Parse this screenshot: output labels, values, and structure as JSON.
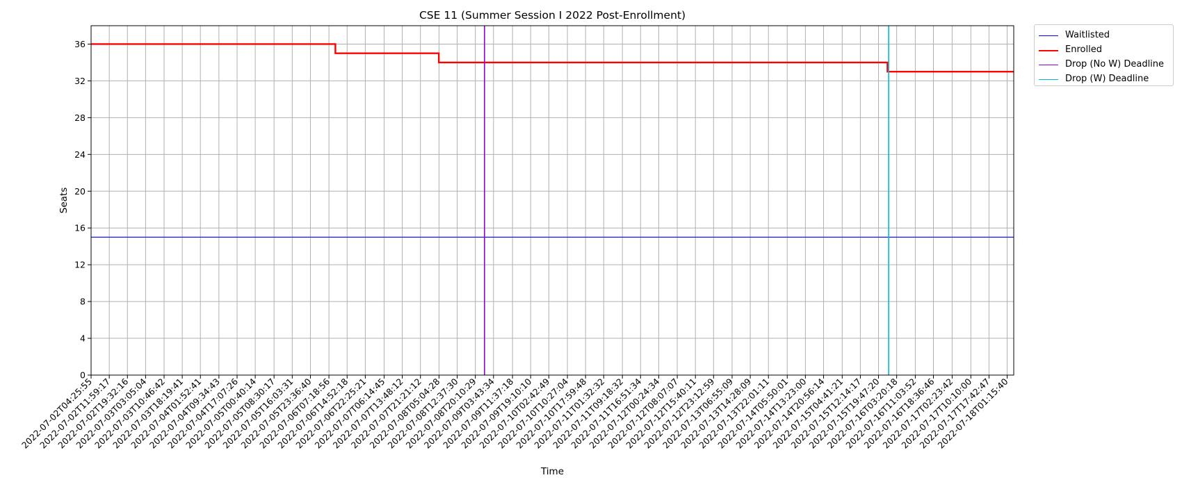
{
  "chart_data": {
    "type": "line",
    "title": "CSE 11 (Summer Session I 2022 Post-Enrollment)",
    "xlabel": "Time",
    "ylabel": "Seats",
    "ylim": [
      0,
      38
    ],
    "y_ticks": [
      0,
      4,
      8,
      12,
      16,
      20,
      24,
      28,
      32,
      36
    ],
    "x_ticks": [
      "2022-07-02T04:25:55",
      "2022-07-02T11:59:17",
      "2022-07-02T19:32:16",
      "2022-07-03T03:05:04",
      "2022-07-03T10:46:42",
      "2022-07-03T18:19:41",
      "2022-07-04T01:52:41",
      "2022-07-04T09:34:43",
      "2022-07-04T17:07:26",
      "2022-07-05T00:40:14",
      "2022-07-05T08:30:17",
      "2022-07-05T16:03:31",
      "2022-07-05T23:36:40",
      "2022-07-06T07:18:56",
      "2022-07-06T14:52:18",
      "2022-07-06T22:25:21",
      "2022-07-07T06:14:45",
      "2022-07-07T13:48:12",
      "2022-07-07T21:21:12",
      "2022-07-08T05:04:28",
      "2022-07-08T12:37:30",
      "2022-07-08T20:10:29",
      "2022-07-09T03:43:34",
      "2022-07-09T11:37:18",
      "2022-07-09T19:10:10",
      "2022-07-10T02:42:49",
      "2022-07-10T10:27:04",
      "2022-07-10T17:59:48",
      "2022-07-11T01:32:32",
      "2022-07-11T09:18:32",
      "2022-07-11T16:51:34",
      "2022-07-12T00:24:34",
      "2022-07-12T08:07:07",
      "2022-07-12T15:40:11",
      "2022-07-12T23:12:59",
      "2022-07-13T06:55:09",
      "2022-07-13T14:28:09",
      "2022-07-13T22:01:11",
      "2022-07-14T05:50:01",
      "2022-07-14T13:23:00",
      "2022-07-14T20:56:14",
      "2022-07-15T04:41:21",
      "2022-07-15T12:14:17",
      "2022-07-15T19:47:20",
      "2022-07-16T03:20:18",
      "2022-07-16T11:03:52",
      "2022-07-16T18:36:46",
      "2022-07-17T02:23:42",
      "2022-07-17T10:10:00",
      "2022-07-17T17:42:47",
      "2022-07-18T01:15:40"
    ],
    "x_start": "2022-07-02T04:25:55",
    "x_end": "2022-07-18T04:00:00",
    "series": [
      {
        "name": "Waitlisted",
        "color": "#0000ff",
        "points": [
          {
            "x": "2022-07-02T04:25:55",
            "y": 15
          },
          {
            "x": "2022-07-18T04:00:00",
            "y": 15
          }
        ]
      },
      {
        "name": "Enrolled",
        "color": "#ff0000",
        "step": true,
        "points": [
          {
            "x": "2022-07-02T04:25:55",
            "y": 36
          },
          {
            "x": "2022-07-06T10:00:00",
            "y": 35
          },
          {
            "x": "2022-07-08T05:00:00",
            "y": 34
          },
          {
            "x": "2022-07-15T23:30:00",
            "y": 33
          },
          {
            "x": "2022-07-18T04:00:00",
            "y": 33
          }
        ]
      }
    ],
    "vlines": [
      {
        "name": "Drop (No W) Deadline",
        "color": "#9400d3",
        "x": "2022-07-08T23:59:00"
      },
      {
        "name": "Drop (W) Deadline",
        "color": "#00bcd4",
        "x": "2022-07-16T00:00:00"
      }
    ],
    "grid": true,
    "legend_position": "outside-top-right"
  }
}
